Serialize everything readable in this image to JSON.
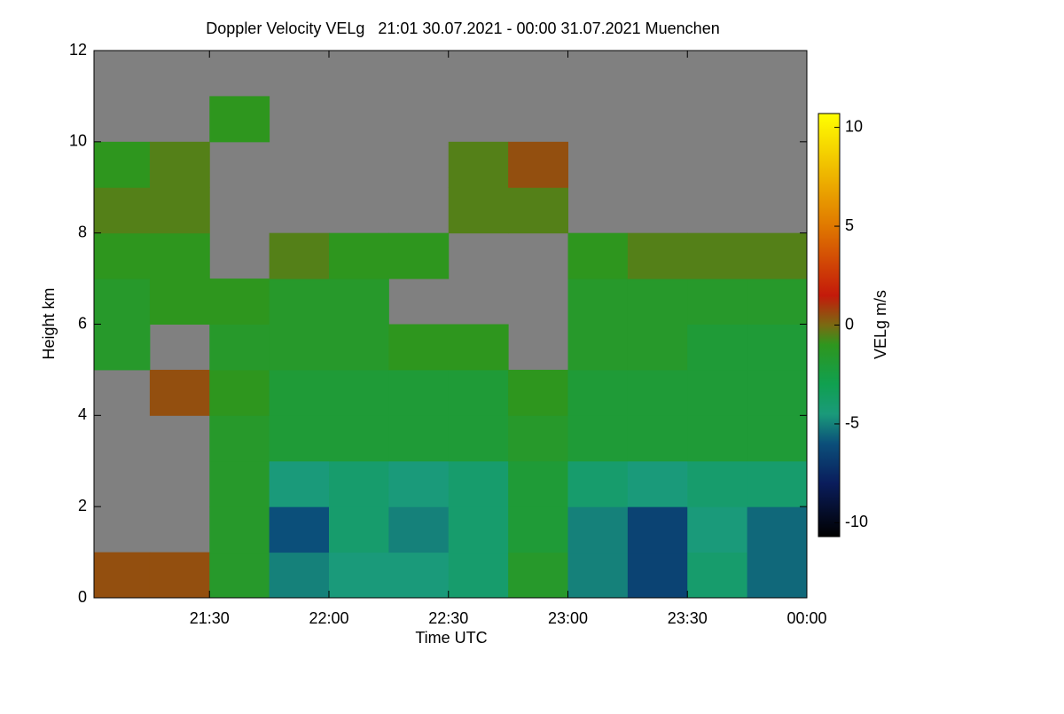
{
  "chart_data": {
    "type": "heatmap",
    "title": "Doppler Velocity VELg   21:01 30.07.2021 - 00:00 31.07.2021 Muenchen",
    "x_label": "Time UTC",
    "y_label": "Height km",
    "colorbar_label": "VELg m/s",
    "xlim": [
      21.0167,
      24.0
    ],
    "xticks": [
      {
        "value": 21.5,
        "label": "21:30"
      },
      {
        "value": 22.0,
        "label": "22:00"
      },
      {
        "value": 22.5,
        "label": "22:30"
      },
      {
        "value": 23.0,
        "label": "23:00"
      },
      {
        "value": 23.5,
        "label": "23:30"
      },
      {
        "value": 24.0,
        "label": "00:00"
      }
    ],
    "ylim": [
      0,
      12
    ],
    "yticks": [
      0,
      2,
      4,
      6,
      8,
      10,
      12
    ],
    "xbins": [
      21.0167,
      21.25,
      21.5,
      21.75,
      22.0,
      22.25,
      22.5,
      22.75,
      23.0,
      23.25,
      23.5,
      23.75,
      24.0
    ],
    "ybins": [
      0,
      1,
      2,
      3,
      4,
      5,
      6,
      7,
      8,
      9,
      10,
      11,
      12
    ],
    "clim": [
      -10.7,
      10.7
    ],
    "cticks": [
      -10,
      -5,
      0,
      5,
      10
    ],
    "colorscale": [
      [
        -10.7,
        "#000000"
      ],
      [
        -8,
        "#0a1d5c"
      ],
      [
        -6,
        "#0b4f7a"
      ],
      [
        -4.5,
        "#1a9a7a"
      ],
      [
        -3,
        "#10a050"
      ],
      [
        -1,
        "#2e961e"
      ],
      [
        0,
        "#7a6a12"
      ],
      [
        1.5,
        "#c41a0a"
      ],
      [
        5,
        "#e07800"
      ],
      [
        10.7,
        "#ffff00"
      ]
    ],
    "background": "#808080",
    "z": [
      [
        0.5,
        0.5,
        -1.5,
        -5,
        -4.5,
        -4.5,
        -4,
        -1.5,
        -5,
        -6.5,
        -4,
        -5.5
      ],
      [
        null,
        null,
        -1.5,
        -6,
        -4,
        -5,
        -4,
        -2,
        -5,
        -6.5,
        -4.5,
        -5.5
      ],
      [
        null,
        null,
        -1.5,
        -4.5,
        -4,
        -4.5,
        -4,
        -2,
        -4,
        -4.5,
        -4,
        -4
      ],
      [
        null,
        null,
        -1.5,
        -2,
        -2,
        -2,
        -2,
        -1.5,
        -2,
        -2,
        -2,
        -2
      ],
      [
        null,
        0.5,
        -1,
        -2,
        -2,
        -2,
        -2,
        -1,
        -2,
        -2,
        -2,
        -2
      ],
      [
        -1.5,
        null,
        -1.5,
        -1.5,
        -1.5,
        -1,
        -1,
        null,
        -1.5,
        -1.5,
        -2,
        -2
      ],
      [
        -1.5,
        -1,
        -1,
        -1.5,
        -1.5,
        null,
        null,
        null,
        -1.5,
        -1.5,
        -1.5,
        -1.5
      ],
      [
        -1,
        -1,
        null,
        -0.5,
        -1,
        -1,
        null,
        null,
        -1,
        -0.5,
        -0.5,
        -0.5
      ],
      [
        -0.5,
        -0.5,
        null,
        null,
        null,
        null,
        -0.5,
        -0.5,
        null,
        null,
        null,
        null
      ],
      [
        -1,
        -0.5,
        null,
        null,
        null,
        null,
        -0.5,
        0.5,
        null,
        null,
        null,
        null
      ],
      [
        null,
        null,
        -1,
        null,
        null,
        null,
        null,
        null,
        null,
        null,
        null,
        null
      ],
      [
        null,
        null,
        null,
        null,
        null,
        null,
        null,
        null,
        null,
        null,
        null,
        null
      ]
    ]
  }
}
